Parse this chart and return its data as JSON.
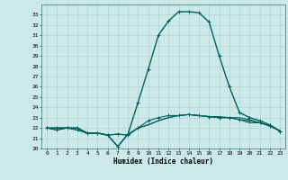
{
  "xlabel": "Humidex (Indice chaleur)",
  "background_color": "#cce8e8",
  "grid_color": "#aad4d4",
  "line_color": "#006060",
  "xlim": [
    -0.5,
    23.5
  ],
  "ylim": [
    20,
    34
  ],
  "yticks": [
    20,
    21,
    22,
    23,
    24,
    25,
    26,
    27,
    28,
    29,
    30,
    31,
    32,
    33
  ],
  "xticks": [
    0,
    1,
    2,
    3,
    4,
    5,
    6,
    7,
    8,
    9,
    10,
    11,
    12,
    13,
    14,
    15,
    16,
    17,
    18,
    19,
    20,
    21,
    22,
    23
  ],
  "series": [
    {
      "y": [
        22,
        22,
        22,
        22,
        21.5,
        21.5,
        21.3,
        20.2,
        21.4,
        24.5,
        27.7,
        31.0,
        32.4,
        33.3,
        33.3,
        33.2,
        32.3,
        29.0,
        26.0,
        23.5,
        23.0,
        22.7,
        22.3,
        21.7
      ],
      "marker": true,
      "linewidth": 1.0
    },
    {
      "y": [
        22,
        21.8,
        22,
        21.8,
        21.5,
        21.5,
        21.3,
        21.4,
        21.3,
        22.0,
        22.3,
        22.7,
        23.0,
        23.2,
        23.3,
        23.2,
        23.1,
        23.1,
        23.0,
        23.0,
        22.8,
        22.5,
        22.2,
        21.7
      ],
      "marker": false,
      "linewidth": 0.8
    },
    {
      "y": [
        22,
        21.8,
        22,
        21.8,
        21.5,
        21.5,
        21.3,
        21.4,
        21.3,
        22.0,
        22.7,
        23.0,
        23.2,
        23.2,
        23.3,
        23.2,
        23.1,
        23.0,
        23.0,
        22.8,
        22.7,
        22.5,
        22.2,
        21.7
      ],
      "marker": true,
      "linewidth": 0.8
    },
    {
      "y": [
        22,
        22,
        22,
        22,
        21.5,
        21.5,
        21.3,
        20.2,
        21.4,
        22.0,
        22.3,
        22.7,
        23.0,
        23.2,
        23.3,
        23.2,
        23.1,
        23.0,
        23.0,
        22.8,
        22.5,
        22.5,
        22.2,
        21.7
      ],
      "marker": false,
      "linewidth": 0.8
    }
  ]
}
